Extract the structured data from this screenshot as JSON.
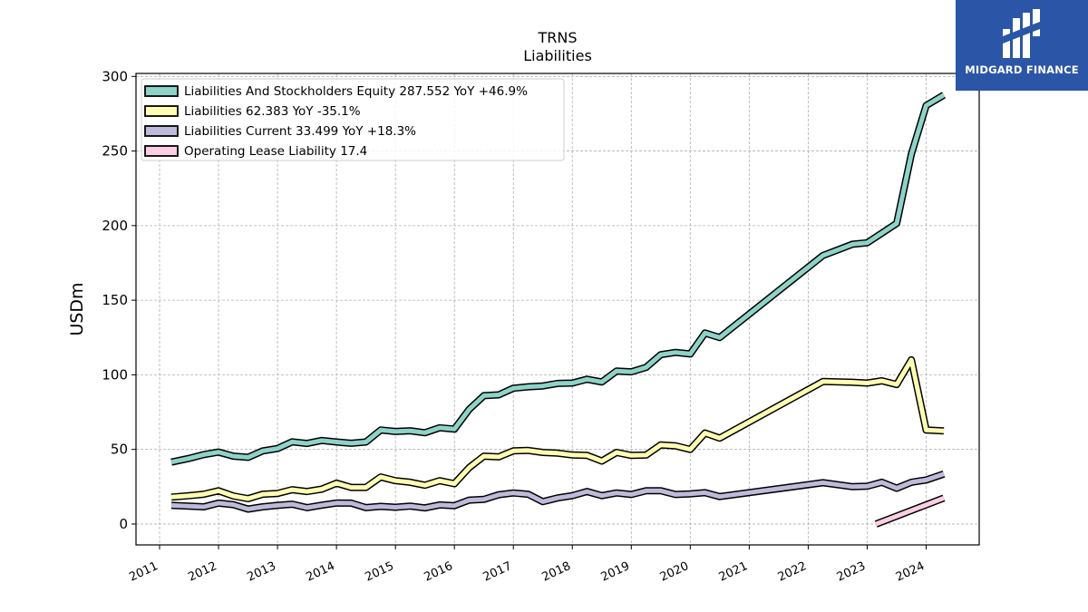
{
  "brand": {
    "name": "MIDGARD FINANCE",
    "accent": "#2b55a6"
  },
  "chart_data": {
    "type": "line",
    "title": "TRNS",
    "subtitle": "Liabilities",
    "ylabel": "USDm",
    "xlabel": "",
    "ylim": [
      -14,
      302
    ],
    "xlim": [
      2010.6,
      2024.9
    ],
    "yticks": [
      0,
      50,
      100,
      150,
      200,
      250,
      300
    ],
    "xticks": [
      2011,
      2012,
      2013,
      2014,
      2015,
      2016,
      2017,
      2018,
      2019,
      2020,
      2021,
      2022,
      2023,
      2024
    ],
    "grid": true,
    "legend_position": "top-left",
    "series": [
      {
        "name": "Liabilities And Stockholders Equity  287.552 YoY +46.9%",
        "color": "#8dd3c7",
        "x": [
          2011.2,
          2011.5,
          2011.75,
          2012.0,
          2012.25,
          2012.5,
          2012.75,
          2013.0,
          2013.25,
          2013.5,
          2013.75,
          2014.0,
          2014.25,
          2014.5,
          2014.75,
          2015.0,
          2015.25,
          2015.5,
          2015.75,
          2016.0,
          2016.25,
          2016.5,
          2016.75,
          2017.0,
          2017.25,
          2017.5,
          2017.75,
          2018.0,
          2018.25,
          2018.5,
          2018.75,
          2019.0,
          2019.25,
          2019.5,
          2019.75,
          2020.0,
          2020.25,
          2020.5,
          2022.25,
          2022.75,
          2023.0,
          2023.5,
          2023.75,
          2024.0,
          2024.3
        ],
        "y": [
          41.5,
          44,
          46.5,
          48.2,
          45.5,
          44.7,
          49,
          50.6,
          55.1,
          54,
          56,
          55,
          54.1,
          55,
          63,
          62,
          62.5,
          61.2,
          64.5,
          63.6,
          76.8,
          86,
          86.6,
          91,
          92,
          92.5,
          94.2,
          94.5,
          97,
          95.2,
          102.5,
          102,
          105,
          113.5,
          115,
          114,
          128,
          125,
          180,
          187.5,
          188.5,
          201.5,
          248,
          280.5,
          287.552
        ]
      },
      {
        "name": "Liabilities  62.383 YoY -35.1%",
        "color": "#ffffb3",
        "x": [
          2011.2,
          2011.5,
          2011.75,
          2012.0,
          2012.25,
          2012.5,
          2012.75,
          2013.0,
          2013.25,
          2013.5,
          2013.75,
          2014.0,
          2014.25,
          2014.5,
          2014.75,
          2015.0,
          2015.25,
          2015.5,
          2015.75,
          2016.0,
          2016.25,
          2016.5,
          2016.75,
          2017.0,
          2017.25,
          2017.5,
          2017.75,
          2018.0,
          2018.25,
          2018.5,
          2018.75,
          2019.0,
          2019.25,
          2019.5,
          2019.75,
          2020.0,
          2020.25,
          2020.5,
          2022.25,
          2022.75,
          2023.0,
          2023.25,
          2023.5,
          2023.75,
          2024.0,
          2024.3
        ],
        "y": [
          18,
          19,
          20,
          22.3,
          18.8,
          17,
          20,
          20.5,
          23,
          21.8,
          23.4,
          27.4,
          24.5,
          24.5,
          31.5,
          29,
          28,
          26,
          29,
          27,
          37.8,
          45.5,
          45,
          49,
          49.3,
          48,
          47.5,
          46.3,
          46,
          42.2,
          48,
          46,
          46.2,
          53,
          52.4,
          50,
          61,
          57.6,
          95.5,
          95,
          94.5,
          96,
          93.5,
          110,
          63,
          62.383
        ]
      },
      {
        "name": "Liabilities Current  33.499 YoY +18.3%",
        "color": "#bebada",
        "x": [
          2011.2,
          2011.5,
          2011.75,
          2012.0,
          2012.25,
          2012.5,
          2012.75,
          2013.0,
          2013.25,
          2013.5,
          2013.75,
          2014.0,
          2014.25,
          2014.5,
          2014.75,
          2015.0,
          2015.25,
          2015.5,
          2015.75,
          2016.0,
          2016.25,
          2016.5,
          2016.75,
          2017.0,
          2017.25,
          2017.5,
          2017.75,
          2018.0,
          2018.25,
          2018.5,
          2018.75,
          2019.0,
          2019.25,
          2019.5,
          2019.75,
          2020.0,
          2020.25,
          2020.5,
          2022.25,
          2022.75,
          2023.0,
          2023.25,
          2023.5,
          2023.75,
          2024.0,
          2024.3
        ],
        "y": [
          12.5,
          12,
          11.5,
          14,
          13,
          10,
          11.5,
          12.5,
          13.3,
          11,
          12.6,
          14.1,
          14,
          11,
          11.8,
          11.2,
          12,
          10.8,
          12.8,
          12.3,
          16,
          16.5,
          19.6,
          20.8,
          20,
          15,
          17.5,
          19,
          21.8,
          19,
          20.8,
          19.8,
          22.3,
          22.3,
          19.8,
          20.2,
          21,
          18.4,
          27.7,
          25,
          25.3,
          28,
          24,
          28,
          29.5,
          33.499
        ]
      },
      {
        "name": "Operating Lease Liability  17.4",
        "color": "#fccde5",
        "x": [
          2023.15,
          2024.3
        ],
        "y": [
          0,
          17.4
        ]
      }
    ]
  }
}
